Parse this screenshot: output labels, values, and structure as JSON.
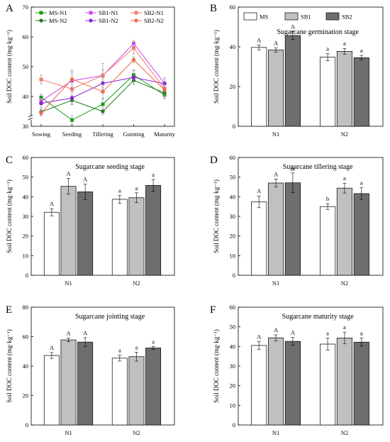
{
  "figure": {
    "colors": {
      "MS": "#ffffff",
      "SB1": "#c0c0c0",
      "SB2": "#6e6e6e",
      "MS-N1": "#1a9c1a",
      "MS-N2": "#1f7a1f",
      "SB1-N1": "#cc44ee",
      "SB1-N2": "#8a1fd6",
      "SB2-N1": "#f07a6e",
      "SB2-N2": "#ee6a4a"
    }
  },
  "chart_data": [
    {
      "panel": "A",
      "type": "line",
      "title": "",
      "ylabel": "Soil DOC content (mg·kg⁻¹)",
      "xlabel": "",
      "categories": [
        "Sowing",
        "Seeding",
        "Tillering",
        "Gointing",
        "Maturity"
      ],
      "ylim": [
        30,
        70
      ],
      "yticks": [
        30,
        40,
        50,
        60,
        70
      ],
      "axis_break": true,
      "legend": "top",
      "series": [
        {
          "name": "MS-N1",
          "marker": "square",
          "values": [
            39.7,
            32.1,
            37.4,
            47.2,
            40.5
          ],
          "err": [
            1.2,
            1.5,
            2.0,
            1.5,
            1.2
          ]
        },
        {
          "name": "SB1-N1",
          "marker": "square",
          "values": [
            38.4,
            45.3,
            47.0,
            57.8,
            44.4
          ],
          "err": [
            1.0,
            3.0,
            2.0,
            1.0,
            1.2
          ]
        },
        {
          "name": "SB2-N1",
          "marker": "square",
          "values": [
            45.7,
            42.5,
            47.1,
            56.3,
            42.6
          ],
          "err": [
            1.5,
            3.0,
            4.0,
            2.0,
            1.5
          ]
        },
        {
          "name": "MS-N2",
          "marker": "circle",
          "values": [
            34.8,
            38.7,
            35.0,
            45.4,
            41.2
          ],
          "err": [
            1.0,
            1.5,
            1.0,
            1.5,
            2.0
          ]
        },
        {
          "name": "SB1-N2",
          "marker": "circle",
          "values": [
            37.7,
            39.5,
            44.4,
            46.4,
            44.3
          ],
          "err": [
            1.5,
            2.0,
            2.0,
            2.5,
            2.0
          ]
        },
        {
          "name": "SB2-N2",
          "marker": "circle",
          "values": [
            34.5,
            45.8,
            41.6,
            52.3,
            42.2
          ],
          "err": [
            1.0,
            3.0,
            2.5,
            1.0,
            2.0
          ]
        }
      ]
    },
    {
      "panel": "B",
      "type": "bar",
      "title": "Sugarcane germination stage",
      "ylabel": "Soil DOC content (mg·kg⁻¹)",
      "xlabel": "",
      "categories": [
        "N1",
        "N2"
      ],
      "ylim": [
        0,
        60
      ],
      "yticks": [
        0,
        20,
        40,
        60
      ],
      "legend": "top-left",
      "series": [
        {
          "name": "MS",
          "values": [
            39.7,
            34.8
          ],
          "err": [
            1.2,
            1.8
          ],
          "labels": [
            "A",
            "a"
          ]
        },
        {
          "name": "SB1",
          "values": [
            38.4,
            37.7
          ],
          "err": [
            1.0,
            1.5
          ],
          "labels": [
            "A",
            "a"
          ]
        },
        {
          "name": "SB2",
          "values": [
            45.7,
            34.5
          ],
          "err": [
            2.0,
            1.2
          ],
          "labels": [
            "A",
            "a"
          ]
        }
      ]
    },
    {
      "panel": "C",
      "type": "bar",
      "title": "Sugarcane seeding stage",
      "ylabel": "Soil DOC content (mg·kg⁻¹)",
      "xlabel": "",
      "categories": [
        "N1",
        "N2"
      ],
      "ylim": [
        0,
        60
      ],
      "yticks": [
        0,
        10,
        20,
        30,
        40,
        50,
        60
      ],
      "series": [
        {
          "name": "MS",
          "values": [
            32.1,
            38.7
          ],
          "err": [
            1.8,
            2.0
          ],
          "labels": [
            "A",
            "a"
          ]
        },
        {
          "name": "SB1",
          "values": [
            45.3,
            39.5
          ],
          "err": [
            4.0,
            2.5
          ],
          "labels": [
            "A",
            "a"
          ]
        },
        {
          "name": "SB2",
          "values": [
            42.5,
            45.8
          ],
          "err": [
            4.0,
            3.0
          ],
          "labels": [
            "A",
            "a"
          ]
        }
      ]
    },
    {
      "panel": "D",
      "type": "bar",
      "title": "Sugarcane tillering stage",
      "ylabel": "Soil DOC content (mg·kg⁻¹)",
      "xlabel": "",
      "categories": [
        "N1",
        "N2"
      ],
      "ylim": [
        0,
        60
      ],
      "yticks": [
        0,
        10,
        20,
        30,
        40,
        50,
        60
      ],
      "series": [
        {
          "name": "MS",
          "values": [
            37.4,
            35.0
          ],
          "err": [
            3.0,
            1.5
          ],
          "labels": [
            "A",
            "b"
          ]
        },
        {
          "name": "SB1",
          "values": [
            47.0,
            44.4
          ],
          "err": [
            2.0,
            2.5
          ],
          "labels": [
            "A",
            "a"
          ]
        },
        {
          "name": "SB2",
          "values": [
            47.1,
            41.6
          ],
          "err": [
            5.0,
            3.0
          ],
          "labels": [
            "A",
            "a"
          ]
        }
      ]
    },
    {
      "panel": "E",
      "type": "bar",
      "title": "Sugarcane jointing stage",
      "ylabel": "Soil DOC content (mg·kg⁻¹)",
      "xlabel": "",
      "categories": [
        "N1",
        "N2"
      ],
      "ylim": [
        0,
        80
      ],
      "yticks": [
        0,
        20,
        40,
        60,
        80
      ],
      "series": [
        {
          "name": "MS",
          "values": [
            47.2,
            45.4
          ],
          "err": [
            2.0,
            2.0
          ],
          "labels": [
            "A",
            "a"
          ]
        },
        {
          "name": "SB1",
          "values": [
            57.8,
            46.4
          ],
          "err": [
            1.2,
            3.0
          ],
          "labels": [
            "A",
            "a"
          ]
        },
        {
          "name": "SB2",
          "values": [
            56.3,
            52.3
          ],
          "err": [
            3.0,
            1.0
          ],
          "labels": [
            "A",
            "a"
          ]
        }
      ]
    },
    {
      "panel": "F",
      "type": "bar",
      "title": "Sugarcane maturity stage",
      "ylabel": "Soil DOC content (mg·kg⁻¹)",
      "xlabel": "",
      "categories": [
        "N1",
        "N2"
      ],
      "ylim": [
        0,
        60
      ],
      "yticks": [
        0,
        10,
        20,
        30,
        40,
        50,
        60
      ],
      "series": [
        {
          "name": "MS",
          "values": [
            40.5,
            41.2
          ],
          "err": [
            2.0,
            3.0
          ],
          "labels": [
            "A",
            "a"
          ]
        },
        {
          "name": "SB1",
          "values": [
            44.4,
            44.3
          ],
          "err": [
            1.5,
            3.0
          ],
          "labels": [
            "A",
            "a"
          ]
        },
        {
          "name": "SB2",
          "values": [
            42.6,
            42.2
          ],
          "err": [
            2.0,
            2.0
          ],
          "labels": [
            "A",
            "a"
          ]
        }
      ]
    }
  ]
}
